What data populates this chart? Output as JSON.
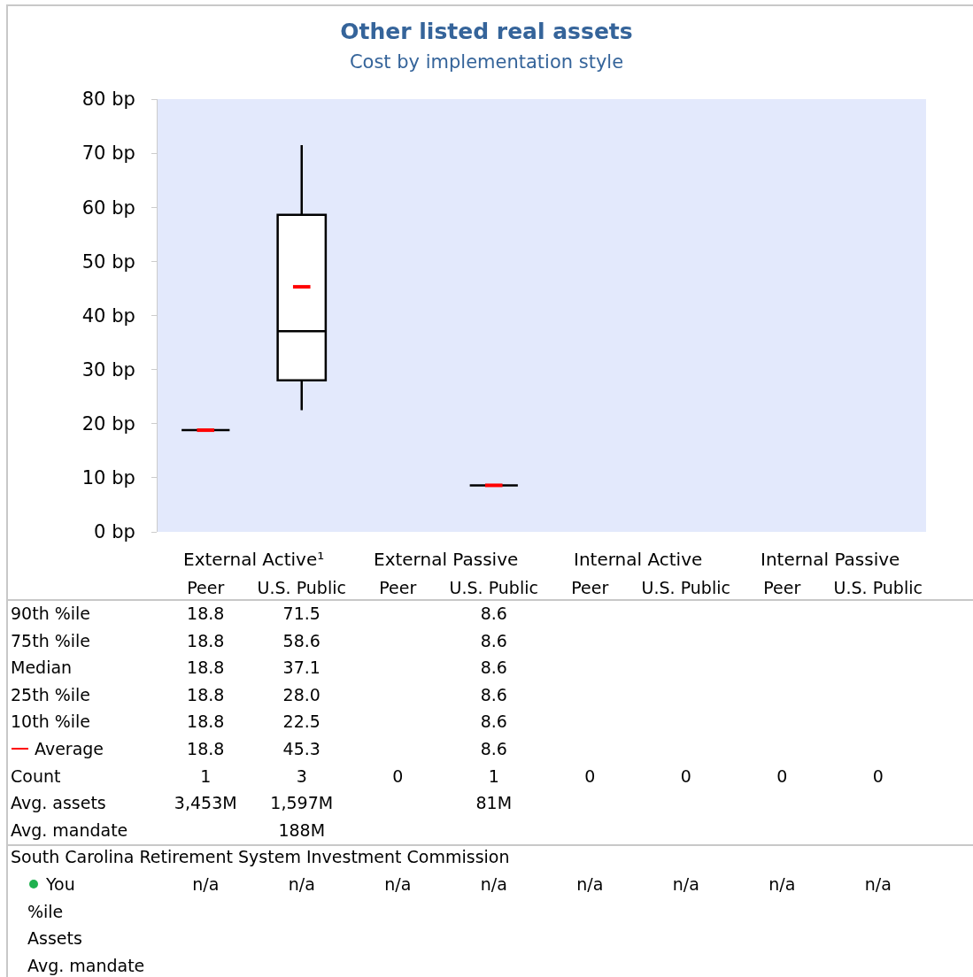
{
  "chart_data": {
    "type": "box",
    "title": "Other listed real assets",
    "subtitle": "Cost by implementation style",
    "categories": [
      "Peer",
      "U.S. Public",
      "Peer",
      "U.S. Public",
      "Peer",
      "U.S. Public",
      "Peer",
      "U.S. Public"
    ],
    "ylim": [
      0,
      80
    ],
    "yticks": [
      {
        "value": 0,
        "label": "0 bp"
      },
      {
        "value": 10,
        "label": "10 bp"
      },
      {
        "value": 20,
        "label": "20 bp"
      },
      {
        "value": 30,
        "label": "30 bp"
      },
      {
        "value": 40,
        "label": "40 bp"
      },
      {
        "value": 50,
        "label": "50 bp"
      },
      {
        "value": 60,
        "label": "60 bp"
      },
      {
        "value": 70,
        "label": "70 bp"
      },
      {
        "value": 80,
        "label": "80 bp"
      }
    ],
    "grid": false,
    "series": [
      {
        "color": "#000000",
        "boxes": [
          {
            "low": 18.8,
            "q1": 18.8,
            "median": 18.8,
            "q3": 18.8,
            "high": 18.8,
            "mean": 18.8
          },
          {
            "low": 22.5,
            "q1": 28.0,
            "median": 37.1,
            "q3": 58.6,
            "high": 71.5,
            "mean": 45.3
          },
          null,
          {
            "low": 8.6,
            "q1": 8.6,
            "median": 8.6,
            "q3": 8.6,
            "high": 8.6,
            "mean": 8.6
          },
          null,
          null,
          null,
          null
        ]
      }
    ],
    "annotations": [
      "External Active¹",
      "External Passive",
      "Internal Active",
      "Internal Passive",
      "90th %ile",
      "18.8",
      "71.5",
      "8.6",
      "75th %ile",
      "18.8",
      "58.6",
      "8.6",
      "Median",
      "18.8",
      "37.1",
      "8.6",
      "25th %ile",
      "18.8",
      "28.0",
      "8.6",
      "10th %ile",
      "18.8",
      "22.5",
      "8.6",
      "Average",
      "18.8",
      "45.3",
      "8.6",
      "Count",
      "1",
      "3",
      "0",
      "1",
      "0",
      "0",
      "0",
      "0",
      "Avg. assets",
      "3,453M",
      "1,597M",
      "81M",
      "Avg. mandate",
      "188M",
      "South Carolina Retirement System Investment Commission",
      "You",
      "n/a",
      "n/a",
      "n/a",
      "n/a",
      "n/a",
      "n/a",
      "n/a",
      "n/a",
      "%ile",
      "Assets",
      "Avg. mandate"
    ]
  }
}
